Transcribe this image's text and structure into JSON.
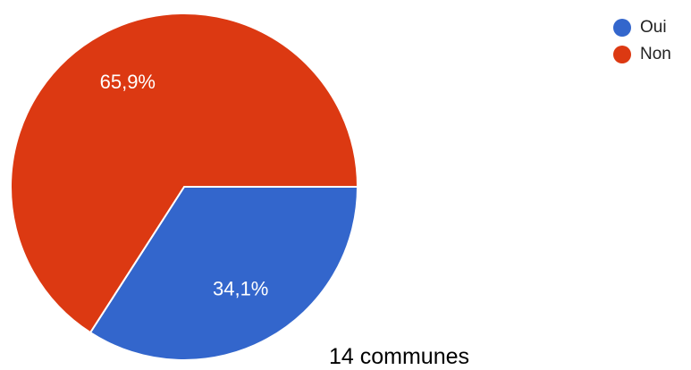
{
  "chart_data": {
    "type": "pie",
    "title": "",
    "slices": [
      {
        "label": "Oui",
        "value": 34.1,
        "value_label": "34,1%",
        "color": "#3366cc"
      },
      {
        "label": "Non",
        "value": 65.9,
        "value_label": "65,9%",
        "color": "#dc3912"
      }
    ],
    "start_direction": "right (3 o'clock), clockwise",
    "legend_position": "top-right"
  },
  "caption": "14 communes"
}
